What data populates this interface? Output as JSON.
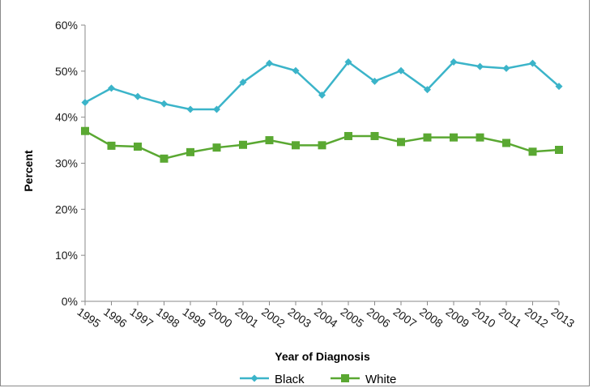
{
  "chart_data": {
    "type": "line",
    "title": "",
    "xlabel": "Year of Diagnosis",
    "ylabel": "Percent",
    "categories": [
      "1995",
      "1996",
      "1997",
      "1998",
      "1999",
      "2000",
      "2001",
      "2002",
      "2003",
      "2004",
      "2005",
      "2006",
      "2007",
      "2008",
      "2009",
      "2010",
      "2011",
      "2012",
      "2013"
    ],
    "y_ticks": [
      "0%",
      "10%",
      "20%",
      "30%",
      "40%",
      "50%",
      "60%"
    ],
    "ylim": [
      0,
      60
    ],
    "grid": false,
    "legend_position": "bottom",
    "series": [
      {
        "name": "Black",
        "marker": "diamond",
        "color": "#3bb4c9",
        "values": [
          43.2,
          46.3,
          44.5,
          42.9,
          41.7,
          41.7,
          47.6,
          51.7,
          50.1,
          44.8,
          52.0,
          47.8,
          50.1,
          46.0,
          52.0,
          51.0,
          50.6,
          51.7,
          46.7
        ]
      },
      {
        "name": "White",
        "marker": "square",
        "color": "#5aa832",
        "values": [
          37.0,
          33.8,
          33.6,
          31.0,
          32.4,
          33.4,
          34.0,
          35.0,
          33.9,
          33.9,
          35.9,
          35.9,
          34.6,
          35.6,
          35.6,
          35.6,
          34.4,
          32.5,
          32.9
        ]
      }
    ]
  }
}
